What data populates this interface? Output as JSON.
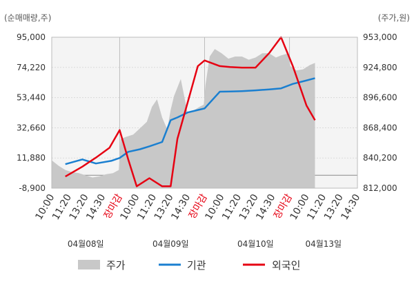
{
  "chart_data": {
    "type": "line",
    "left_axis_unit": "(순매매량,주)",
    "right_axis_unit": "(주가,원)",
    "left_ticks": [
      "95,000",
      "74,220",
      "53,440",
      "32,660",
      "11,880",
      "-8,900"
    ],
    "left_tick_values": [
      95000,
      74220,
      53440,
      32660,
      11880,
      -8900
    ],
    "right_ticks": [
      "953,000",
      "924,800",
      "896,600",
      "868,400",
      "840,200",
      "812,000"
    ],
    "right_tick_values": [
      953000,
      924800,
      896600,
      868400,
      840200,
      812000
    ],
    "left_ylim": [
      -8900,
      95000
    ],
    "right_ylim": [
      812000,
      953000
    ],
    "x_labels": [
      "10:00",
      "11:20",
      "13:20",
      "14:30",
      "장마감",
      "10:00",
      "11:20",
      "13:20",
      "14:30",
      "장마감",
      "10:00",
      "11:20",
      "13:20",
      "14:30",
      "장마감",
      "10:00",
      "11:20",
      "13:20",
      "14:30"
    ],
    "closing_label": "장마감",
    "date_labels": [
      {
        "text": "04월08일",
        "slot": 2
      },
      {
        "text": "04월09일",
        "slot": 7
      },
      {
        "text": "04월10일",
        "slot": 12
      },
      {
        "text": "04월13일",
        "slot": 16
      }
    ],
    "grid": true,
    "legend_position": "bottom",
    "colors": {
      "price": "#c8c8c8",
      "institution": "#1a7fd0",
      "foreign": "#e60012",
      "closing": "#e60012"
    },
    "series": [
      {
        "name": "기관",
        "axis": "left",
        "x": [
          0.8,
          1.8,
          2.6,
          3.5,
          4.0,
          4.5,
          5.2,
          5.75,
          6.5,
          7.0,
          7.4,
          8.0,
          8.6,
          9.0,
          9.9,
          10.5,
          11.2,
          12.0,
          12.8,
          13.5,
          14.2,
          14.9,
          15.5
        ],
        "values": [
          7600,
          10900,
          8100,
          9900,
          11900,
          16100,
          17900,
          19900,
          22900,
          37900,
          39800,
          43200,
          44900,
          46000,
          57500,
          57600,
          57900,
          58400,
          59100,
          59800,
          62900,
          64900,
          66800
        ]
      },
      {
        "name": "외국인",
        "axis": "left",
        "x": [
          0.8,
          1.8,
          2.6,
          3.4,
          4.0,
          4.5,
          5.0,
          5.75,
          6.5,
          7.0,
          7.4,
          8.0,
          8.6,
          9.0,
          9.9,
          10.5,
          11.2,
          12.0,
          12.8,
          13.5,
          14.2,
          15.0,
          15.5
        ],
        "values": [
          -900,
          5900,
          12100,
          18900,
          31100,
          11000,
          -7600,
          -2000,
          -7600,
          -7600,
          25000,
          50000,
          75100,
          79000,
          75100,
          74500,
          74100,
          74100,
          84000,
          95000,
          75000,
          48000,
          37900
        ]
      },
      {
        "name": "주가",
        "axis": "right",
        "x": [
          0.0,
          0.4,
          0.8,
          1.2,
          1.6,
          2.0,
          2.4,
          2.8,
          3.2,
          3.6,
          3.95,
          4.05,
          4.4,
          4.8,
          5.2,
          5.6,
          5.9,
          6.2,
          6.5,
          6.8,
          7.0,
          7.2,
          7.6,
          8.0,
          8.4,
          8.7,
          8.95,
          9.05,
          9.3,
          9.6,
          10.0,
          10.4,
          10.8,
          11.2,
          11.6,
          12.0,
          12.4,
          12.8,
          13.2,
          13.5,
          13.95,
          14.05,
          14.4,
          14.8,
          15.2,
          15.5
        ],
        "values": [
          838000,
          833000,
          829000,
          827000,
          826000,
          824000,
          822000,
          823000,
          825000,
          826000,
          829000,
          858000,
          860000,
          862000,
          868000,
          874000,
          888000,
          895000,
          878000,
          867000,
          885000,
          898000,
          914000,
          882000,
          885000,
          888000,
          890000,
          908000,
          935000,
          942000,
          938000,
          933000,
          935000,
          935000,
          932000,
          934000,
          938000,
          938000,
          934000,
          936000,
          938000,
          926000,
          922000,
          923000,
          927000,
          929000
        ]
      }
    ]
  },
  "legend": {
    "price": "주가",
    "institution": "기관",
    "foreign": "외국인"
  }
}
